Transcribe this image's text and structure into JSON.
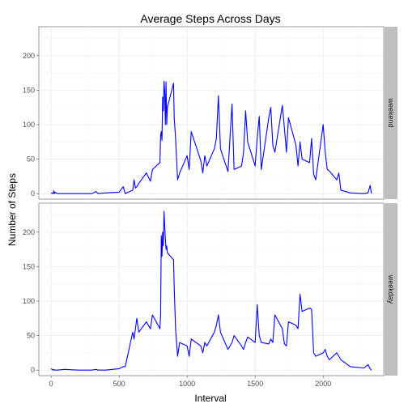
{
  "chart_data": {
    "type": "line",
    "title": "Average Steps Across Days",
    "xlabel": "Interval",
    "ylabel": "Number of Steps",
    "xlim": [
      -90,
      2445
    ],
    "x_ticks": [
      0,
      500,
      1000,
      1500,
      2000
    ],
    "y_ticks": [
      0,
      50,
      100,
      150,
      200
    ],
    "grid": true,
    "line_color": "#0000ff",
    "panels": [
      {
        "label": "weekend",
        "ylim": [
          -8,
          242
        ],
        "x": [
          0,
          15,
          20,
          25,
          30,
          45,
          100,
          200,
          300,
          330,
          345,
          400,
          500,
          530,
          545,
          600,
          610,
          620,
          630,
          645,
          700,
          730,
          745,
          800,
          805,
          810,
          815,
          820,
          825,
          830,
          835,
          840,
          845,
          850,
          855,
          900,
          905,
          915,
          930,
          945,
          1000,
          1015,
          1030,
          1100,
          1115,
          1130,
          1145,
          1200,
          1215,
          1230,
          1245,
          1300,
          1330,
          1345,
          1400,
          1415,
          1430,
          1445,
          1500,
          1515,
          1530,
          1545,
          1600,
          1615,
          1630,
          1645,
          1700,
          1715,
          1730,
          1745,
          1800,
          1815,
          1830,
          1845,
          1900,
          1915,
          1930,
          1945,
          2000,
          2015,
          2030,
          2045,
          2100,
          2115,
          2130,
          2200,
          2300,
          2330,
          2345,
          2355
        ],
        "values": [
          1,
          0,
          4,
          0,
          2,
          0,
          0,
          0,
          0,
          3,
          0,
          1,
          2,
          10,
          0,
          5,
          20,
          8,
          10,
          15,
          30,
          18,
          35,
          45,
          85,
          90,
          77,
          140,
          120,
          163,
          148,
          100,
          162,
          100,
          125,
          160,
          110,
          80,
          20,
          30,
          55,
          35,
          90,
          48,
          30,
          55,
          40,
          65,
          80,
          142,
          65,
          32,
          130,
          35,
          40,
          60,
          120,
          75,
          40,
          80,
          112,
          35,
          110,
          125,
          70,
          60,
          128,
          95,
          60,
          110,
          70,
          40,
          75,
          50,
          45,
          80,
          28,
          20,
          100,
          60,
          35,
          33,
          20,
          30,
          5,
          1,
          0,
          1,
          12,
          0
        ]
      },
      {
        "label": "weekday",
        "ylim": [
          -8,
          242
        ],
        "x": [
          0,
          15,
          20,
          25,
          30,
          45,
          100,
          200,
          300,
          330,
          345,
          400,
          500,
          530,
          545,
          600,
          610,
          620,
          630,
          645,
          700,
          730,
          745,
          800,
          805,
          810,
          815,
          820,
          825,
          830,
          835,
          840,
          845,
          850,
          855,
          900,
          905,
          915,
          930,
          945,
          1000,
          1015,
          1030,
          1100,
          1115,
          1130,
          1145,
          1200,
          1215,
          1230,
          1245,
          1300,
          1330,
          1345,
          1400,
          1415,
          1430,
          1445,
          1500,
          1515,
          1530,
          1545,
          1600,
          1615,
          1630,
          1645,
          1700,
          1715,
          1730,
          1745,
          1800,
          1815,
          1830,
          1845,
          1900,
          1915,
          1930,
          1945,
          2000,
          2015,
          2030,
          2045,
          2100,
          2115,
          2130,
          2200,
          2300,
          2330,
          2345,
          2355
        ],
        "values": [
          2,
          0,
          1,
          0,
          0,
          0,
          1,
          0,
          0,
          1,
          0,
          0,
          2,
          5,
          5,
          55,
          45,
          60,
          75,
          55,
          70,
          60,
          80,
          60,
          80,
          195,
          165,
          200,
          180,
          230,
          210,
          190,
          175,
          180,
          170,
          160,
          120,
          60,
          20,
          40,
          35,
          20,
          45,
          35,
          25,
          40,
          35,
          55,
          65,
          80,
          55,
          30,
          40,
          50,
          35,
          30,
          40,
          48,
          40,
          95,
          50,
          40,
          38,
          45,
          40,
          80,
          60,
          38,
          35,
          70,
          65,
          60,
          110,
          85,
          90,
          88,
          25,
          20,
          25,
          30,
          20,
          15,
          25,
          20,
          15,
          5,
          3,
          8,
          2,
          0
        ]
      }
    ]
  }
}
